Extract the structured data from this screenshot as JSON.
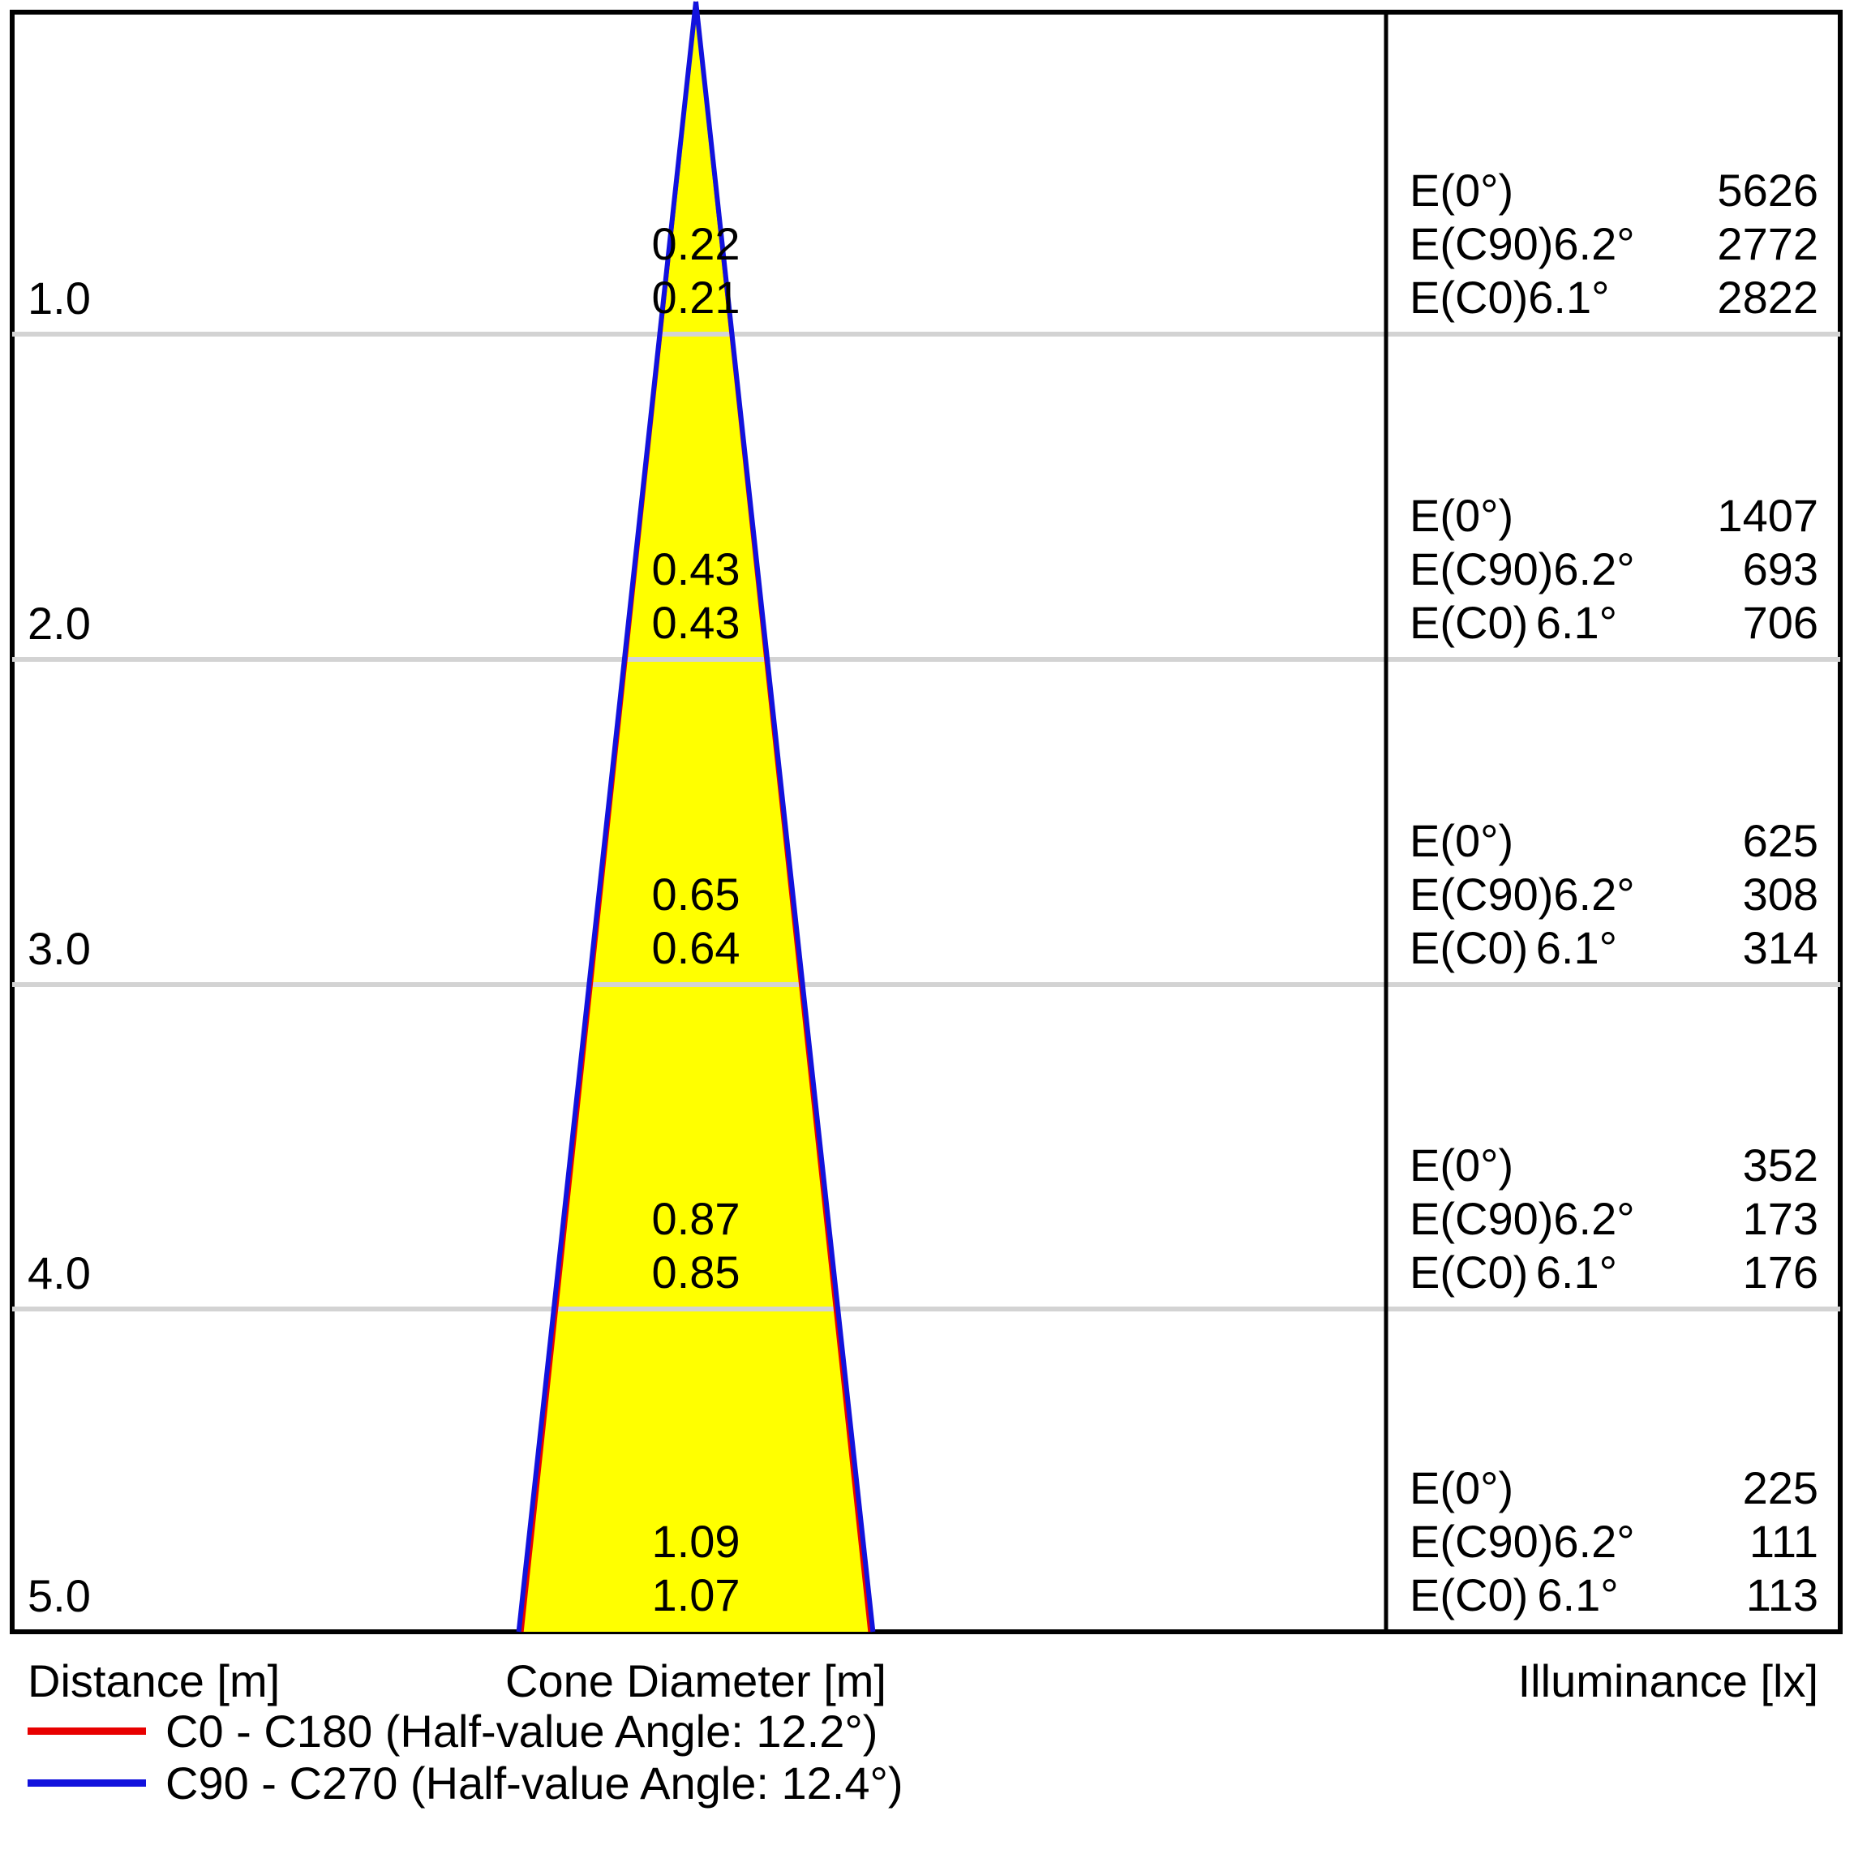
{
  "chart_data": {
    "type": "cone-diagram",
    "description": "Photometric light cone diagram with distance vs cone diameter and illuminance table",
    "distances_m": [
      1.0,
      2.0,
      3.0,
      4.0,
      5.0
    ],
    "axis_labels": {
      "distance": "Distance [m]",
      "cone_diameter": "Cone Diameter [m]",
      "illuminance": "Illuminance [lx]"
    },
    "labels": {
      "e0": "E(0°)",
      "ec90": "E(C90)",
      "ec0": "E(C0)"
    },
    "series": [
      {
        "name": "C0 - C180",
        "half_value_angle_deg": 12.2,
        "angle_label": "6.1°",
        "color": "#e80000",
        "cone_diameters_m": [
          0.21,
          0.43,
          0.64,
          0.85,
          1.07
        ],
        "illuminance_lx": [
          2822,
          706,
          314,
          176,
          113
        ]
      },
      {
        "name": "C90 - C270",
        "half_value_angle_deg": 12.4,
        "angle_label": "6.2°",
        "color": "#1212dd",
        "cone_diameters_m": [
          0.22,
          0.43,
          0.65,
          0.87,
          1.09
        ],
        "illuminance_lx": [
          2772,
          693,
          308,
          173,
          111
        ]
      },
      {
        "name": "E(0°)",
        "illuminance_lx": [
          5626,
          1407,
          625,
          352,
          225
        ]
      }
    ],
    "rows": [
      {
        "d": "1.0",
        "c90": "0.22",
        "c0": "0.21",
        "e0": "5626",
        "a90": "6.2°",
        "e90": "2772",
        "a0": "6.1°",
        "ec0": "2822"
      },
      {
        "d": "2.0",
        "c90": "0.43",
        "c0": "0.43",
        "e0": "1407",
        "a90": "6.2°",
        "e90": "693",
        "a0": "6.1°",
        "ec0": "706"
      },
      {
        "d": "3.0",
        "c90": "0.65",
        "c0": "0.64",
        "e0": "625",
        "a90": "6.2°",
        "e90": "308",
        "a0": "6.1°",
        "ec0": "314"
      },
      {
        "d": "4.0",
        "c90": "0.87",
        "c0": "0.85",
        "e0": "352",
        "a90": "6.2°",
        "e90": "173",
        "a0": "6.1°",
        "ec0": "176"
      },
      {
        "d": "5.0",
        "c90": "1.09",
        "c0": "1.07",
        "e0": "225",
        "a90": "6.2°",
        "e90": "111",
        "a0": "6.1°",
        "ec0": "113"
      }
    ],
    "colors": {
      "cone_fill": "#ffff00",
      "gridline": "#d3d3d3",
      "border": "#000000"
    },
    "legend": [
      {
        "label": "C0 - C180 (Half-value Angle: 12.2°)",
        "color": "#e80000"
      },
      {
        "label": "C90 - C270 (Half-value Angle: 12.4°)",
        "color": "#1212dd"
      }
    ],
    "layout": {
      "grid": true,
      "legend_position": "bottom-left"
    }
  }
}
